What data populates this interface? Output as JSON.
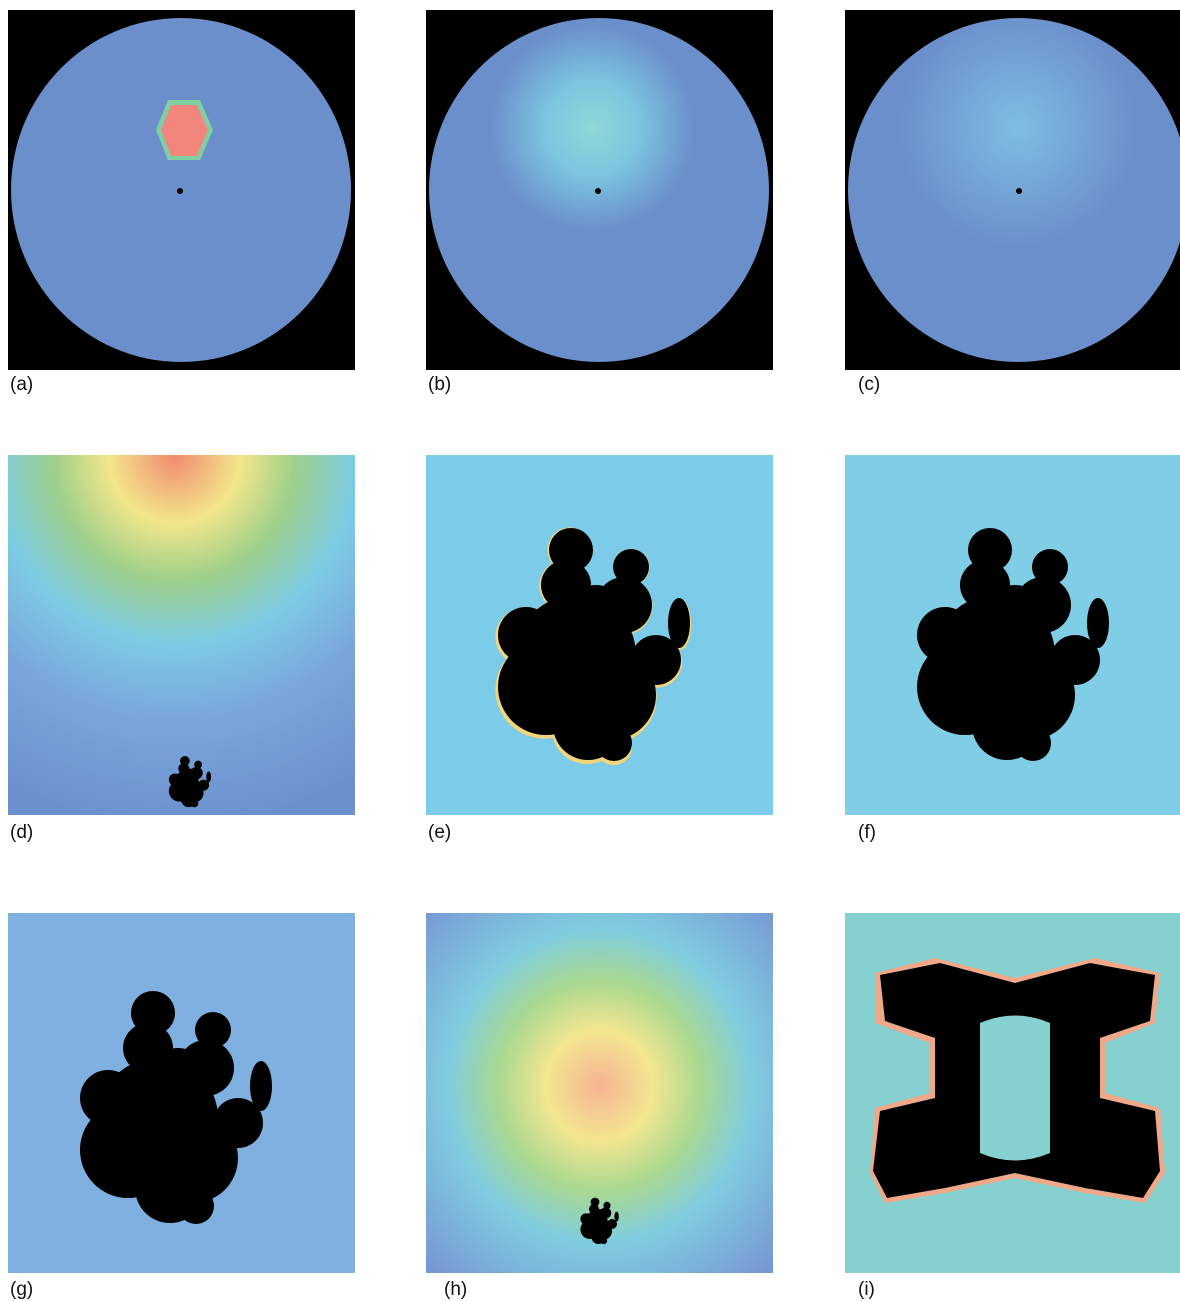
{
  "panels": [
    {
      "label": "(a)"
    },
    {
      "label": "(b)"
    },
    {
      "label": "(c)"
    },
    {
      "label": "(d)"
    },
    {
      "label": "(e)"
    },
    {
      "label": "(f)"
    },
    {
      "label": "(g)"
    },
    {
      "label": "(h)"
    },
    {
      "label": "(i)"
    }
  ]
}
